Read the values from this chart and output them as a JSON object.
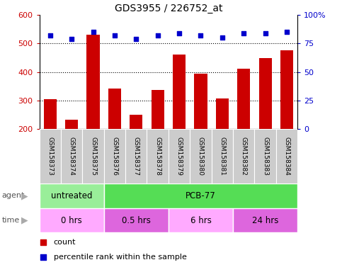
{
  "title": "GDS3955 / 226752_at",
  "categories": [
    "GSM158373",
    "GSM158374",
    "GSM158375",
    "GSM158376",
    "GSM158377",
    "GSM158378",
    "GSM158379",
    "GSM158380",
    "GSM158381",
    "GSM158382",
    "GSM158383",
    "GSM158384"
  ],
  "count_values": [
    305,
    232,
    530,
    343,
    250,
    338,
    462,
    395,
    308,
    412,
    450,
    477
  ],
  "percentile_values": [
    82,
    79,
    85,
    82,
    79,
    82,
    84,
    82,
    80,
    84,
    84,
    85
  ],
  "bar_color": "#cc0000",
  "dot_color": "#0000cc",
  "ylim_left": [
    200,
    600
  ],
  "ylim_right": [
    0,
    100
  ],
  "yticks_left": [
    200,
    300,
    400,
    500,
    600
  ],
  "yticks_right": [
    0,
    25,
    50,
    75,
    100
  ],
  "ytick_right_labels": [
    "0",
    "25",
    "50",
    "75",
    "100%"
  ],
  "agent_groups": [
    {
      "label": "untreated",
      "start": 0,
      "end": 3,
      "color": "#99ee99"
    },
    {
      "label": "PCB-77",
      "start": 3,
      "end": 12,
      "color": "#55dd55"
    }
  ],
  "time_groups": [
    {
      "label": "0 hrs",
      "start": 0,
      "end": 3,
      "color": "#ffaaff"
    },
    {
      "label": "0.5 hrs",
      "start": 3,
      "end": 6,
      "color": "#dd66dd"
    },
    {
      "label": "6 hrs",
      "start": 6,
      "end": 9,
      "color": "#ffaaff"
    },
    {
      "label": "24 hrs",
      "start": 9,
      "end": 12,
      "color": "#dd66dd"
    }
  ],
  "legend_count_label": "count",
  "legend_percentile_label": "percentile rank within the sample",
  "agent_label": "agent",
  "time_label": "time",
  "label_area_color": "#cccccc",
  "grid_dotted_at": [
    300,
    400,
    500
  ],
  "fig_width": 4.83,
  "fig_height": 3.84,
  "dpi": 100
}
